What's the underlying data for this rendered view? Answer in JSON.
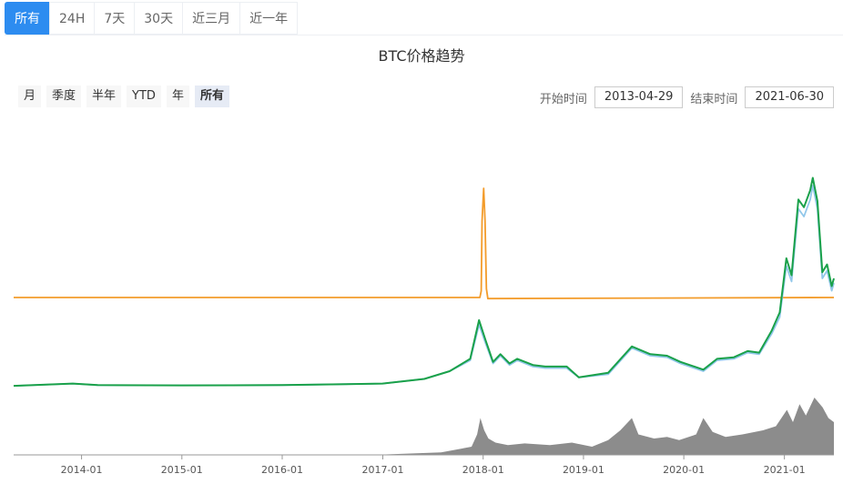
{
  "tabs": [
    "所有",
    "24H",
    "7天",
    "30天",
    "近三月",
    "近一年"
  ],
  "active_tab": 0,
  "ranges": [
    "月",
    "季度",
    "半年",
    "YTD",
    "年",
    "所有"
  ],
  "active_range": 5,
  "dates": {
    "start_label": "开始时间",
    "start_value": "2013-04-29",
    "end_label": "结束时间",
    "end_value": "2021-06-30"
  },
  "chart_data": {
    "type": "line",
    "title": "BTC价格趋势",
    "x_ticks": [
      "2014-01",
      "2015-01",
      "2016-01",
      "2017-01",
      "2018-01",
      "2019-01",
      "2020-01",
      "2021-01"
    ],
    "x_range": [
      "2013-04-29",
      "2021-06-30"
    ],
    "legend": "none",
    "grid": false,
    "series": [
      {
        "color": "#f39c2b",
        "x": [
          "2013-04-29",
          "2017-12-20",
          "2017-12-25",
          "2017-12-28",
          "2018-01-03",
          "2018-01-08",
          "2018-01-13",
          "2018-01-18",
          "2021-06-30"
        ],
        "values": [
          0,
          0,
          6,
          70,
          100,
          70,
          8,
          -1,
          0
        ]
      },
      {
        "color": "#91c7ea",
        "x": [
          "2013-04-29",
          "2013-11-30",
          "2014-03-01",
          "2015-01-01",
          "2016-01-01",
          "2016-12-31",
          "2017-06-01",
          "2017-09-01",
          "2017-11-15",
          "2017-12-17",
          "2018-01-10",
          "2018-02-06",
          "2018-03-05",
          "2018-04-07",
          "2018-05-05",
          "2018-07-01",
          "2018-08-15",
          "2018-11-01",
          "2018-12-15",
          "2019-04-01",
          "2019-06-26",
          "2019-09-01",
          "2019-11-01",
          "2019-12-20",
          "2020-03-12",
          "2020-05-01",
          "2020-07-01",
          "2020-08-20",
          "2020-10-01",
          "2020-11-15",
          "2020-12-15",
          "2021-01-08",
          "2021-01-27",
          "2021-02-21",
          "2021-03-13",
          "2021-04-05",
          "2021-04-14",
          "2021-05-01",
          "2021-05-19",
          "2021-06-05",
          "2021-06-22",
          "2021-06-30"
        ],
        "values": [
          0.5,
          2,
          1,
          0.8,
          1,
          2,
          5,
          10,
          17,
          40,
          28,
          15,
          20,
          14,
          17,
          13,
          12,
          12,
          6,
          8,
          25,
          20,
          19,
          15,
          10,
          17,
          18,
          22,
          21,
          34,
          45,
          78,
          68,
          115,
          110,
          121,
          130,
          115,
          70,
          75,
          62,
          67
        ]
      },
      {
        "color": "#1aa14a",
        "x": [
          "2013-04-29",
          "2013-11-30",
          "2014-03-01",
          "2015-01-01",
          "2016-01-01",
          "2016-12-31",
          "2017-06-01",
          "2017-09-01",
          "2017-11-15",
          "2017-12-17",
          "2018-01-10",
          "2018-02-06",
          "2018-03-05",
          "2018-04-07",
          "2018-05-05",
          "2018-07-01",
          "2018-08-15",
          "2018-11-01",
          "2018-12-15",
          "2019-04-01",
          "2019-06-26",
          "2019-09-01",
          "2019-11-01",
          "2019-12-20",
          "2020-03-12",
          "2020-05-01",
          "2020-07-01",
          "2020-08-20",
          "2020-10-01",
          "2020-11-15",
          "2020-12-15",
          "2021-01-08",
          "2021-01-27",
          "2021-02-21",
          "2021-03-13",
          "2021-04-05",
          "2021-04-14",
          "2021-05-01",
          "2021-05-19",
          "2021-06-05",
          "2021-06-22",
          "2021-06-30"
        ],
        "values": [
          0.5,
          2,
          1,
          0.8,
          1,
          2,
          5,
          10,
          18,
          43,
          30,
          16,
          21,
          15,
          18,
          14,
          13,
          13,
          6,
          9,
          26,
          21,
          20,
          16,
          11,
          18,
          19,
          23,
          22,
          36,
          48,
          83,
          72,
          121,
          116,
          127,
          135,
          120,
          74,
          79,
          65,
          70
        ]
      },
      {
        "type": "area",
        "color": "#8c8c8c",
        "x": [
          "2013-04-29",
          "2016-12-31",
          "2017-08-01",
          "2017-11-20",
          "2017-12-10",
          "2017-12-22",
          "2018-01-05",
          "2018-01-20",
          "2018-02-15",
          "2018-04-01",
          "2018-06-01",
          "2018-09-01",
          "2018-11-20",
          "2019-02-01",
          "2019-04-01",
          "2019-05-15",
          "2019-06-26",
          "2019-07-20",
          "2019-09-15",
          "2019-11-01",
          "2019-12-15",
          "2020-02-15",
          "2020-03-12",
          "2020-04-15",
          "2020-06-01",
          "2020-08-01",
          "2020-10-15",
          "2020-12-01",
          "2021-01-10",
          "2021-02-01",
          "2021-02-25",
          "2021-03-20",
          "2021-04-20",
          "2021-05-20",
          "2021-06-10",
          "2021-06-30"
        ],
        "values": [
          0,
          0.5,
          3,
          10,
          25,
          45,
          30,
          20,
          15,
          12,
          14,
          12,
          15,
          10,
          18,
          30,
          45,
          25,
          20,
          22,
          18,
          25,
          45,
          28,
          22,
          25,
          30,
          35,
          55,
          40,
          62,
          48,
          70,
          58,
          45,
          40
        ]
      }
    ]
  }
}
